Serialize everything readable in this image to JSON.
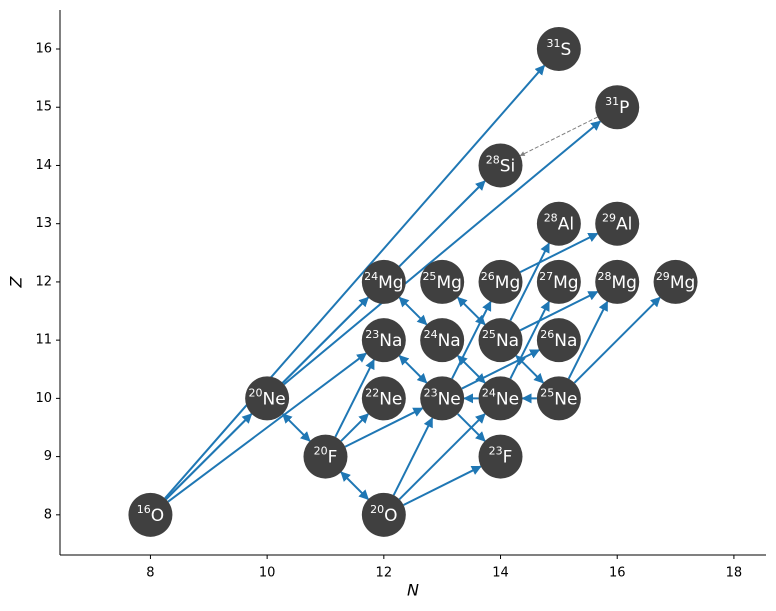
{
  "chart_data": {
    "type": "network",
    "xlabel": "N",
    "ylabel": "Z",
    "xlim": [
      6.45,
      18.55
    ],
    "ylim": [
      7.31,
      16.67
    ],
    "xticks": [
      8,
      10,
      12,
      14,
      16,
      18
    ],
    "yticks": [
      8,
      9,
      10,
      11,
      12,
      13,
      14,
      15,
      16
    ],
    "node_color": "#404040",
    "nodes": {
      "x": [
        8,
        10,
        11,
        12,
        12,
        12,
        12,
        13,
        13,
        13,
        14,
        14,
        14,
        14,
        14,
        15,
        16,
        15,
        16,
        15,
        16,
        17,
        15,
        15
      ],
      "y": [
        8,
        10,
        9,
        8,
        10,
        11,
        12,
        11,
        10,
        12,
        12,
        11,
        10,
        9,
        14,
        16,
        15,
        13,
        13,
        12,
        12,
        12,
        11,
        10
      ],
      "mass": [
        "16",
        "20",
        "20",
        "20",
        "22",
        "23",
        "24",
        "24",
        "23",
        "25",
        "26",
        "25",
        "24",
        "23",
        "28",
        "31",
        "31",
        "28",
        "29",
        "27",
        "28",
        "29",
        "26",
        "25"
      ],
      "element": [
        "O",
        "Ne",
        "F",
        "O",
        "Ne",
        "Na",
        "Mg",
        "Na",
        "Ne",
        "Mg",
        "Mg",
        "Na",
        "Ne",
        "F",
        "Si",
        "S",
        "P",
        "Al",
        "Al",
        "Mg",
        "Mg",
        "Mg",
        "Na",
        "Ne"
      ]
    },
    "arrow_color": "#1f77b4",
    "arrows": [
      {
        "x": [
          8,
          10
        ],
        "y": [
          8,
          10
        ]
      },
      {
        "x": [
          8,
          15
        ],
        "y": [
          8,
          16
        ]
      },
      {
        "x": [
          8,
          14
        ],
        "y": [
          8,
          14
        ]
      },
      {
        "x": [
          8,
          12
        ],
        "y": [
          8,
          11
        ]
      },
      {
        "x": [
          10,
          16
        ],
        "y": [
          10,
          15
        ]
      },
      {
        "x": [
          10,
          12
        ],
        "y": [
          10,
          12
        ]
      },
      {
        "x": [
          10,
          11
        ],
        "y": [
          10,
          9
        ],
        "both": true
      },
      {
        "x": [
          11,
          12
        ],
        "y": [
          9,
          8
        ],
        "both": true
      },
      {
        "x": [
          11,
          12
        ],
        "y": [
          9,
          11
        ]
      },
      {
        "x": [
          11,
          12
        ],
        "y": [
          9,
          10
        ]
      },
      {
        "x": [
          11,
          13
        ],
        "y": [
          9,
          10
        ]
      },
      {
        "x": [
          12,
          13
        ],
        "y": [
          8,
          10
        ]
      },
      {
        "x": [
          12,
          14
        ],
        "y": [
          8,
          10
        ]
      },
      {
        "x": [
          12,
          14
        ],
        "y": [
          8,
          9
        ]
      },
      {
        "x": [
          12,
          13
        ],
        "y": [
          11,
          10
        ],
        "both": true
      },
      {
        "x": [
          12,
          13
        ],
        "y": [
          12,
          11
        ],
        "both": true
      },
      {
        "x": [
          14,
          13
        ],
        "y": [
          10,
          10
        ]
      },
      {
        "x": [
          13,
          14
        ],
        "y": [
          10,
          9
        ]
      },
      {
        "x": [
          13,
          14
        ],
        "y": [
          10,
          12
        ]
      },
      {
        "x": [
          13,
          15
        ],
        "y": [
          10,
          11
        ]
      },
      {
        "x": [
          13,
          14
        ],
        "y": [
          11,
          10
        ],
        "both": true
      },
      {
        "x": [
          13,
          14
        ],
        "y": [
          12,
          11
        ],
        "both": true
      },
      {
        "x": [
          14,
          15
        ],
        "y": [
          11,
          10
        ],
        "both": true
      },
      {
        "x": [
          15,
          16
        ],
        "y": [
          10,
          12
        ]
      },
      {
        "x": [
          15,
          17
        ],
        "y": [
          10,
          12
        ]
      },
      {
        "x": [
          14,
          15
        ],
        "y": [
          10,
          12
        ]
      },
      {
        "x": [
          14,
          15
        ],
        "y": [
          11,
          13
        ]
      },
      {
        "x": [
          14,
          16
        ],
        "y": [
          12,
          13
        ]
      },
      {
        "x": [
          14,
          16
        ],
        "y": [
          11,
          12
        ]
      },
      {
        "x": [
          15,
          14
        ],
        "y": [
          10,
          10
        ]
      }
    ],
    "dashed_color": "#808080",
    "dashed_arrows": [
      {
        "x": [
          16,
          14
        ],
        "y": [
          15,
          14
        ]
      }
    ]
  }
}
